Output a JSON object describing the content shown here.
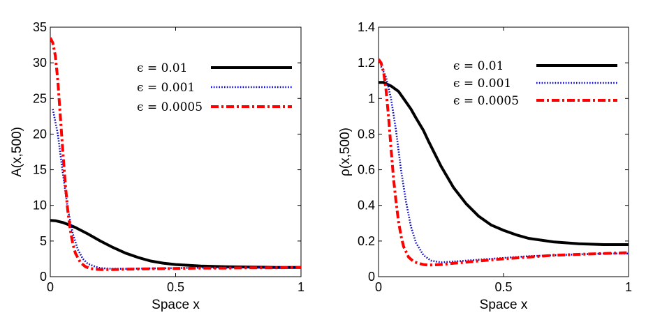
{
  "chart_data": [
    {
      "type": "line",
      "xlabel": "Space x",
      "ylabel": "A(x,500)",
      "xlim": [
        0,
        1
      ],
      "ylim": [
        0,
        35
      ],
      "xticks": [
        0,
        0.5,
        1
      ],
      "xtick_labels": [
        "0",
        "0.5",
        "1"
      ],
      "yticks": [
        0,
        5,
        10,
        15,
        20,
        25,
        30,
        35
      ],
      "ytick_labels": [
        "0",
        "5",
        "10",
        "15",
        "20",
        "25",
        "30",
        "35"
      ],
      "grid": false,
      "legend_position": "top-right",
      "series": [
        {
          "name": "ϵ = 0.01",
          "style": "solid",
          "color": "#000000",
          "x": [
            0,
            0.02,
            0.05,
            0.08,
            0.1,
            0.15,
            0.2,
            0.25,
            0.3,
            0.35,
            0.4,
            0.45,
            0.5,
            0.6,
            0.7,
            0.8,
            0.9,
            1.0
          ],
          "y": [
            7.9,
            7.85,
            7.6,
            7.2,
            6.9,
            6.0,
            5.0,
            4.1,
            3.3,
            2.7,
            2.2,
            1.9,
            1.7,
            1.5,
            1.4,
            1.35,
            1.3,
            1.3
          ]
        },
        {
          "name": "ϵ = 0.001",
          "style": "dotted",
          "color": "#0000cc",
          "x": [
            0.01,
            0.03,
            0.05,
            0.07,
            0.09,
            0.11,
            0.13,
            0.15,
            0.18,
            0.2,
            0.25,
            0.3,
            0.4,
            0.5,
            0.6,
            0.7,
            0.8,
            0.9,
            1.0
          ],
          "y": [
            23.5,
            20.0,
            14.5,
            9.5,
            6.0,
            3.8,
            2.5,
            1.8,
            1.4,
            1.2,
            1.1,
            1.1,
            1.15,
            1.2,
            1.25,
            1.25,
            1.3,
            1.3,
            1.3
          ]
        },
        {
          "name": "ϵ = 0.0005",
          "style": "dashdot",
          "color": "#ff0000",
          "x": [
            0,
            0.01,
            0.02,
            0.03,
            0.04,
            0.05,
            0.06,
            0.07,
            0.08,
            0.09,
            0.1,
            0.12,
            0.14,
            0.16,
            0.18,
            0.2,
            0.25,
            0.3,
            0.4,
            0.5,
            0.6,
            0.7,
            0.8,
            0.9,
            1.0
          ],
          "y": [
            33.5,
            32.8,
            31.0,
            27.5,
            22.5,
            17.5,
            13.0,
            9.2,
            6.5,
            4.6,
            3.3,
            2.0,
            1.4,
            1.15,
            1.05,
            1.0,
            1.0,
            1.05,
            1.1,
            1.15,
            1.2,
            1.2,
            1.25,
            1.25,
            1.3
          ]
        }
      ]
    },
    {
      "type": "line",
      "xlabel": "Space x",
      "ylabel": "ρ(x,500)",
      "xlim": [
        0,
        1
      ],
      "ylim": [
        0,
        1.4
      ],
      "xticks": [
        0,
        0.5,
        1
      ],
      "xtick_labels": [
        "0",
        "0.5",
        "1"
      ],
      "yticks": [
        0,
        0.2,
        0.4,
        0.6,
        0.8,
        1.0,
        1.2,
        1.4
      ],
      "ytick_labels": [
        "0",
        "0.2",
        "0.4",
        "0.6",
        "0.8",
        "1",
        "1.2",
        "1.4"
      ],
      "grid": false,
      "legend_position": "top-right",
      "series": [
        {
          "name": "ϵ = 0.01",
          "style": "solid",
          "color": "#000000",
          "x": [
            0,
            0.02,
            0.05,
            0.08,
            0.1,
            0.13,
            0.15,
            0.18,
            0.2,
            0.25,
            0.3,
            0.35,
            0.4,
            0.45,
            0.5,
            0.55,
            0.6,
            0.7,
            0.8,
            0.9,
            1.0
          ],
          "y": [
            1.09,
            1.09,
            1.07,
            1.04,
            1.0,
            0.94,
            0.89,
            0.82,
            0.76,
            0.62,
            0.5,
            0.41,
            0.34,
            0.29,
            0.26,
            0.235,
            0.215,
            0.195,
            0.185,
            0.18,
            0.18
          ]
        },
        {
          "name": "ϵ = 0.001",
          "style": "dotted",
          "color": "#0000cc",
          "x": [
            0.01,
            0.03,
            0.05,
            0.07,
            0.09,
            0.11,
            0.13,
            0.15,
            0.18,
            0.21,
            0.25,
            0.3,
            0.4,
            0.5,
            0.6,
            0.7,
            0.8,
            0.9,
            1.0
          ],
          "y": [
            1.18,
            1.12,
            1.0,
            0.82,
            0.6,
            0.42,
            0.28,
            0.19,
            0.12,
            0.09,
            0.08,
            0.085,
            0.095,
            0.105,
            0.115,
            0.12,
            0.125,
            0.13,
            0.13
          ]
        },
        {
          "name": "ϵ = 0.0005",
          "style": "dashdot",
          "color": "#ff0000",
          "x": [
            0,
            0.01,
            0.02,
            0.03,
            0.04,
            0.05,
            0.06,
            0.07,
            0.08,
            0.09,
            0.1,
            0.12,
            0.14,
            0.16,
            0.18,
            0.2,
            0.25,
            0.3,
            0.4,
            0.5,
            0.6,
            0.7,
            0.8,
            0.9,
            1.0
          ],
          "y": [
            1.22,
            1.2,
            1.15,
            1.05,
            0.9,
            0.72,
            0.55,
            0.42,
            0.31,
            0.23,
            0.17,
            0.11,
            0.085,
            0.075,
            0.068,
            0.065,
            0.068,
            0.075,
            0.088,
            0.1,
            0.11,
            0.12,
            0.125,
            0.13,
            0.135
          ]
        }
      ]
    }
  ]
}
